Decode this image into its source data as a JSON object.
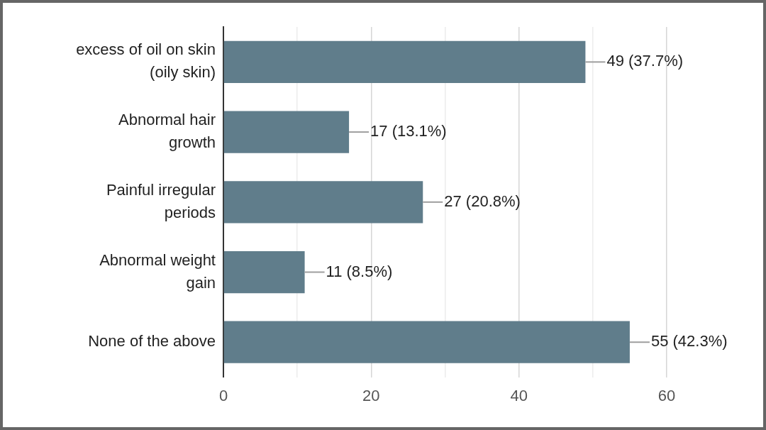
{
  "chart_data": {
    "type": "bar",
    "orientation": "horizontal",
    "categories": [
      "excess of oil on skin\n(oily skin)",
      "Abnormal hair\ngrowth",
      "Painful irregular\nperiods",
      "Abnormal weight\ngain",
      "None of the above"
    ],
    "values": [
      49,
      17,
      27,
      11,
      55
    ],
    "value_labels": [
      "49 (37.7%)",
      "17 (13.1%)",
      "27 (20.8%)",
      "11 (8.5%)",
      "55 (42.3%)"
    ],
    "color": "#607d8b",
    "xlim": [
      0,
      60
    ],
    "xticks": [
      0,
      {
        "value": 10,
        "label": null
      },
      20,
      {
        "value": 30,
        "label": null
      },
      40,
      {
        "value": 50,
        "label": null
      },
      60
    ],
    "grid": "x",
    "legend": false
  }
}
